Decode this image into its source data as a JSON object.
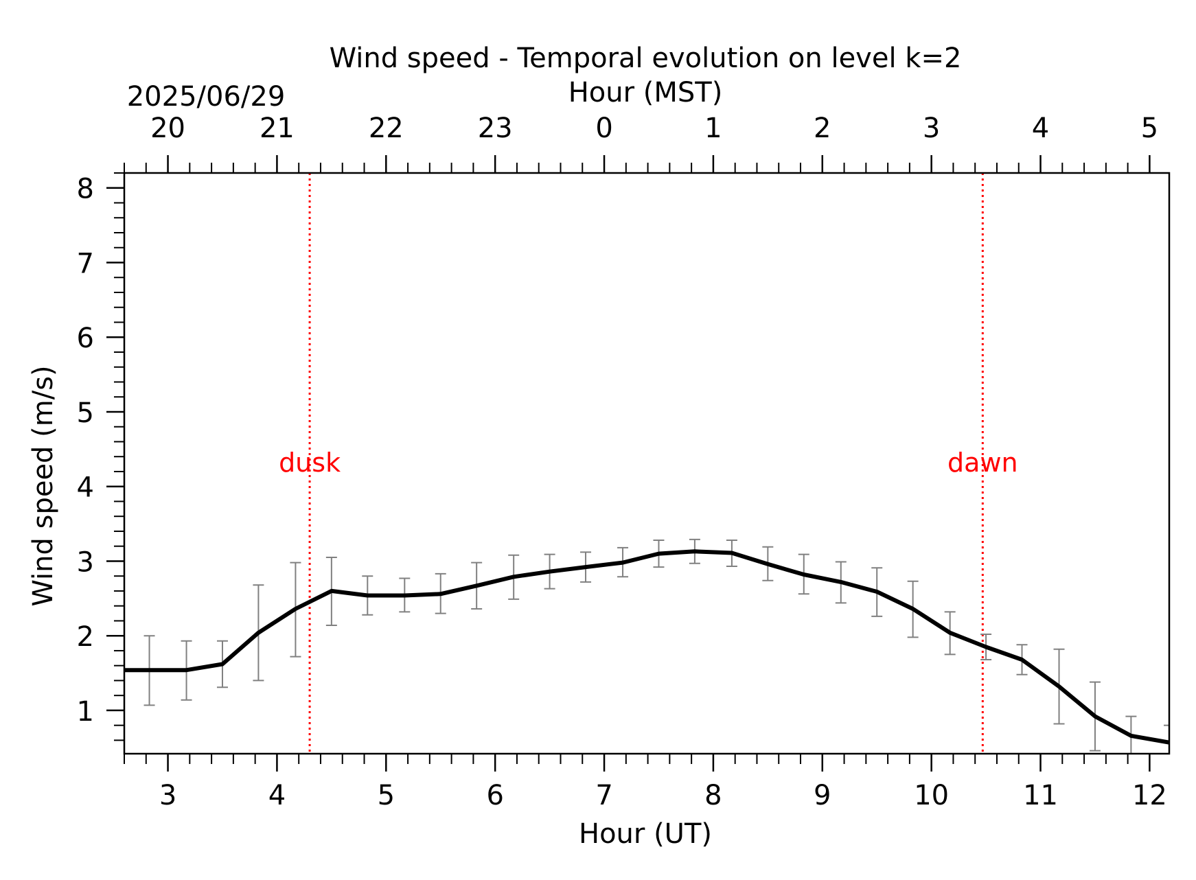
{
  "chart_data": {
    "type": "line",
    "title": "Wind speed - Temporal evolution on level k=2",
    "top_axis": {
      "label": "Hour (MST)",
      "date_label": "2025/06/29",
      "tick_labels": [
        "20",
        "21",
        "22",
        "23",
        "0",
        "1",
        "2",
        "3",
        "4",
        "5"
      ]
    },
    "xlabel": "Hour (UT)",
    "ylabel": "Wind speed (m/s)",
    "xlim": [
      2.6,
      12.18
    ],
    "ylim": [
      0.42,
      8.2
    ],
    "x_ticks": [
      3,
      4,
      5,
      6,
      7,
      8,
      9,
      10,
      11,
      12
    ],
    "y_ticks": [
      1,
      2,
      3,
      4,
      5,
      6,
      7,
      8
    ],
    "grid": false,
    "series": [
      {
        "color": "#000000",
        "error_bar_color": "#808080",
        "points": [
          {
            "x": 2.6,
            "y": 1.54
          },
          {
            "x": 2.83,
            "y": 1.54,
            "err_low": 1.07,
            "err_high": 2.0
          },
          {
            "x": 3.17,
            "y": 1.54,
            "err_low": 1.14,
            "err_high": 1.93
          },
          {
            "x": 3.5,
            "y": 1.62,
            "err_low": 1.31,
            "err_high": 1.93
          },
          {
            "x": 3.83,
            "y": 2.04,
            "err_low": 1.4,
            "err_high": 2.68
          },
          {
            "x": 4.17,
            "y": 2.36,
            "err_low": 1.72,
            "err_high": 2.98
          },
          {
            "x": 4.5,
            "y": 2.6,
            "err_low": 2.14,
            "err_high": 3.05
          },
          {
            "x": 4.83,
            "y": 2.54,
            "err_low": 2.28,
            "err_high": 2.8
          },
          {
            "x": 5.17,
            "y": 2.54,
            "err_low": 2.32,
            "err_high": 2.77
          },
          {
            "x": 5.5,
            "y": 2.56,
            "err_low": 2.3,
            "err_high": 2.83
          },
          {
            "x": 5.83,
            "y": 2.67,
            "err_low": 2.36,
            "err_high": 2.98
          },
          {
            "x": 6.17,
            "y": 2.79,
            "err_low": 2.49,
            "err_high": 3.08
          },
          {
            "x": 6.5,
            "y": 2.86,
            "err_low": 2.63,
            "err_high": 3.09
          },
          {
            "x": 6.83,
            "y": 2.92,
            "err_low": 2.72,
            "err_high": 3.12
          },
          {
            "x": 7.17,
            "y": 2.98,
            "err_low": 2.79,
            "err_high": 3.18
          },
          {
            "x": 7.5,
            "y": 3.1,
            "err_low": 2.92,
            "err_high": 3.28
          },
          {
            "x": 7.83,
            "y": 3.13,
            "err_low": 2.97,
            "err_high": 3.29
          },
          {
            "x": 8.17,
            "y": 3.11,
            "err_low": 2.93,
            "err_high": 3.28
          },
          {
            "x": 8.5,
            "y": 2.96,
            "err_low": 2.74,
            "err_high": 3.19
          },
          {
            "x": 8.83,
            "y": 2.82,
            "err_low": 2.56,
            "err_high": 3.09
          },
          {
            "x": 9.17,
            "y": 2.72,
            "err_low": 2.44,
            "err_high": 2.99
          },
          {
            "x": 9.5,
            "y": 2.59,
            "err_low": 2.26,
            "err_high": 2.91
          },
          {
            "x": 9.83,
            "y": 2.36,
            "err_low": 1.98,
            "err_high": 2.73
          },
          {
            "x": 10.17,
            "y": 2.04,
            "err_low": 1.75,
            "err_high": 2.32
          },
          {
            "x": 10.5,
            "y": 1.85,
            "err_low": 1.68,
            "err_high": 2.02
          },
          {
            "x": 10.83,
            "y": 1.68,
            "err_low": 1.48,
            "err_high": 1.88
          },
          {
            "x": 11.17,
            "y": 1.32,
            "err_low": 0.82,
            "err_high": 1.82
          },
          {
            "x": 11.5,
            "y": 0.92,
            "err_low": 0.46,
            "err_high": 1.38
          },
          {
            "x": 11.83,
            "y": 0.66,
            "err_low": 0.4,
            "err_high": 0.92
          },
          {
            "x": 12.18,
            "y": 0.57,
            "err_low": 0.4,
            "err_high": 0.8
          }
        ]
      }
    ],
    "annotations": [
      {
        "text": "dusk",
        "x": 4.3,
        "color": "#ff0000",
        "line_style": "dotted"
      },
      {
        "text": "dawn",
        "x": 10.47,
        "color": "#ff0000",
        "line_style": "dotted"
      }
    ]
  }
}
